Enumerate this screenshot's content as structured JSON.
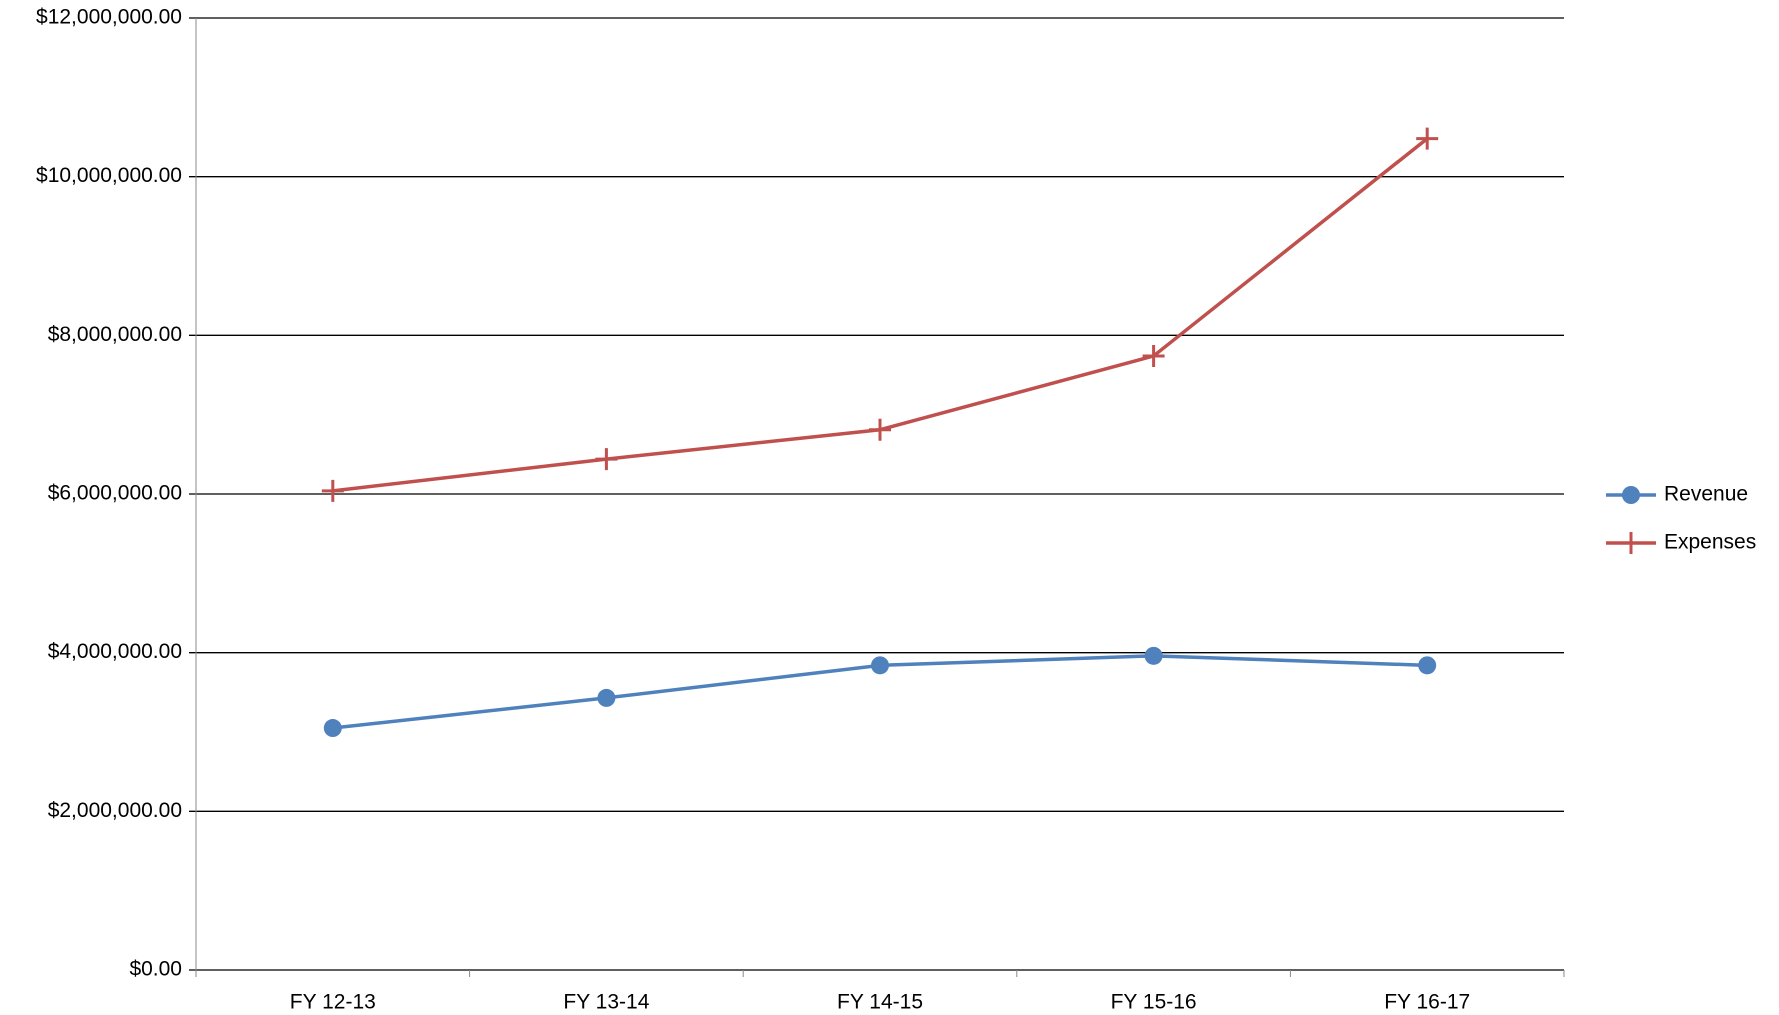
{
  "chart_data": {
    "type": "line",
    "categories": [
      "FY 12-13",
      "FY 13-14",
      "FY 14-15",
      "FY 15-16",
      "FY 16-17"
    ],
    "series": [
      {
        "name": "Revenue",
        "color": "#4f81bd",
        "marker": "circle",
        "values": [
          3050000,
          3430000,
          3840000,
          3960000,
          3840000
        ]
      },
      {
        "name": "Expenses",
        "color": "#c0504d",
        "marker": "plus",
        "values": [
          6040000,
          6440000,
          6810000,
          7740000,
          10480000
        ]
      }
    ],
    "ylim": [
      0,
      12000000
    ],
    "yticks": [
      {
        "value": 0,
        "label": "$0.00"
      },
      {
        "value": 2000000,
        "label": "$2,000,000.00"
      },
      {
        "value": 4000000,
        "label": "$4,000,000.00"
      },
      {
        "value": 6000000,
        "label": "$6,000,000.00"
      },
      {
        "value": 8000000,
        "label": "$8,000,000.00"
      },
      {
        "value": 10000000,
        "label": "$10,000,000.00"
      },
      {
        "value": 12000000,
        "label": "$12,000,000.00"
      }
    ],
    "grid": true,
    "legend": "right"
  }
}
